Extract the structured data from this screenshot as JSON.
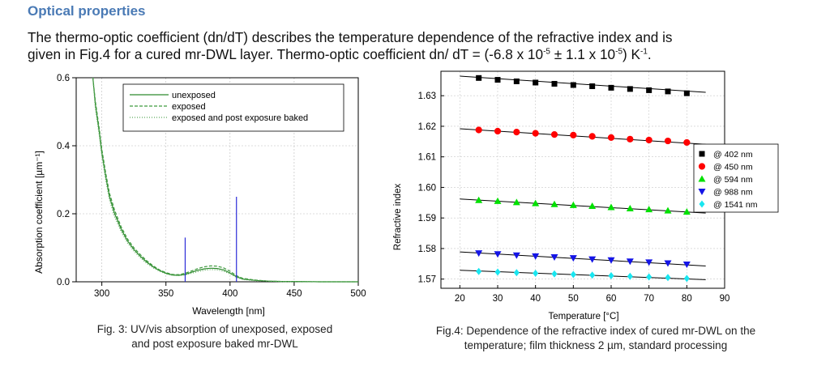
{
  "heading": "Optical properties",
  "paragraph": {
    "line1": "The thermo-optic coefficient (dn/dT) describes the temperature dependence of the refractive index and is",
    "line2_a": "given in Fig.4 for a cured mr-DWL layer. Thermo-optic coefficient dn/ dT = (-6.8 x 10",
    "exp1": "-5",
    "line2_b": " ± 1.1 x 10",
    "exp2": "-5",
    "line2_c": ") K",
    "exp3": "-1",
    "line2_d": "."
  },
  "fig3": {
    "caption_line1": "Fig. 3: UV/vis absorption of unexposed, exposed",
    "caption_line2": "and post exposure baked mr-DWL"
  },
  "fig4": {
    "caption_line1": "Fig.4: Dependence of the refractive index of cured mr-DWL on the",
    "caption_line2": "temperature; film thickness 2 µm, standard processing"
  },
  "chart_data": [
    {
      "type": "line",
      "xlabel": "Wavelength [nm]",
      "ylabel": "Absorption coefficient [µm⁻¹]",
      "xlim": [
        280,
        500
      ],
      "ylim": [
        0,
        0.6
      ],
      "xticks": [
        300,
        350,
        400,
        450,
        500
      ],
      "yticks": [
        0.0,
        0.2,
        0.4,
        0.6
      ],
      "ytick_labels": [
        "0.0",
        "0.2",
        "0.4",
        "0.6"
      ],
      "grid": true,
      "legend_position": "top",
      "series": [
        {
          "name": "unexposed",
          "color": "#2d8a2d",
          "dash": "solid",
          "x": [
            293,
            295,
            298,
            300,
            303,
            306,
            310,
            315,
            320,
            325,
            330,
            335,
            340,
            345,
            350,
            355,
            360,
            365,
            370,
            375,
            380,
            385,
            390,
            395,
            400,
            405,
            410,
            420,
            430,
            440,
            450,
            470,
            500
          ],
          "y": [
            0.6,
            0.52,
            0.44,
            0.38,
            0.31,
            0.25,
            0.2,
            0.155,
            0.12,
            0.095,
            0.075,
            0.058,
            0.044,
            0.033,
            0.025,
            0.02,
            0.019,
            0.022,
            0.028,
            0.034,
            0.038,
            0.04,
            0.039,
            0.035,
            0.026,
            0.015,
            0.008,
            0.004,
            0.002,
            0.001,
            0.001,
            0.0,
            0.0
          ]
        },
        {
          "name": "exposed",
          "color": "#3f9a3f",
          "dash": "4 2",
          "x": [
            293,
            295,
            298,
            300,
            303,
            306,
            310,
            315,
            320,
            325,
            330,
            335,
            340,
            345,
            350,
            355,
            360,
            365,
            370,
            375,
            380,
            385,
            390,
            395,
            400,
            405,
            410,
            420,
            430,
            440,
            450,
            470,
            500
          ],
          "y": [
            0.6,
            0.53,
            0.45,
            0.39,
            0.32,
            0.26,
            0.21,
            0.162,
            0.126,
            0.1,
            0.08,
            0.062,
            0.047,
            0.035,
            0.027,
            0.022,
            0.021,
            0.025,
            0.032,
            0.039,
            0.044,
            0.047,
            0.046,
            0.041,
            0.031,
            0.018,
            0.01,
            0.005,
            0.002,
            0.001,
            0.001,
            0.0,
            0.0
          ]
        },
        {
          "name": "exposed and post exposure baked",
          "color": "#5aa85a",
          "dash": "1 2",
          "x": [
            293,
            295,
            298,
            300,
            303,
            306,
            310,
            315,
            320,
            325,
            330,
            335,
            340,
            345,
            350,
            355,
            360,
            365,
            370,
            375,
            380,
            385,
            390,
            395,
            400,
            405,
            410,
            420,
            430,
            440,
            450,
            470,
            500
          ],
          "y": [
            0.6,
            0.51,
            0.43,
            0.37,
            0.3,
            0.24,
            0.19,
            0.148,
            0.114,
            0.09,
            0.071,
            0.054,
            0.041,
            0.031,
            0.023,
            0.019,
            0.018,
            0.02,
            0.025,
            0.03,
            0.034,
            0.036,
            0.035,
            0.031,
            0.023,
            0.013,
            0.007,
            0.003,
            0.002,
            0.001,
            0.0,
            0.0,
            0.0
          ]
        }
      ],
      "annotations": [
        {
          "type": "vline",
          "x": 365,
          "y_top": 0.13,
          "color": "#2b2bd8"
        },
        {
          "type": "vline",
          "x": 405,
          "y_top": 0.25,
          "color": "#2b2bd8"
        }
      ]
    },
    {
      "type": "scatter",
      "xlabel": "Temperature [°C]",
      "ylabel": "Refractive index",
      "xlim": [
        15,
        90
      ],
      "ylim": [
        1.567,
        1.638
      ],
      "xticks": [
        20,
        30,
        40,
        50,
        60,
        70,
        80,
        90
      ],
      "yticks": [
        1.57,
        1.58,
        1.59,
        1.6,
        1.61,
        1.62,
        1.63
      ],
      "ytick_labels": [
        "1.57",
        "1.58",
        "1.59",
        "1.60",
        "1.61",
        "1.62",
        "1.63"
      ],
      "grid": true,
      "legend_position": "right",
      "x": [
        25,
        30,
        35,
        40,
        45,
        50,
        55,
        60,
        65,
        70,
        75,
        80
      ],
      "series": [
        {
          "name": "@ 402 nm",
          "marker": "square",
          "color": "#000000",
          "values": [
            1.6358,
            1.6352,
            1.6347,
            1.6343,
            1.6339,
            1.6335,
            1.6331,
            1.6326,
            1.6322,
            1.6318,
            1.6314,
            1.6308
          ],
          "fit": [
            [
              20,
              1.6364
            ],
            [
              85,
              1.6311
            ]
          ]
        },
        {
          "name": "@ 450 nm",
          "marker": "circle",
          "color": "#ff0000",
          "values": [
            1.6188,
            1.6184,
            1.6181,
            1.6177,
            1.6173,
            1.6171,
            1.6167,
            1.6163,
            1.6158,
            1.6155,
            1.6152,
            1.6147
          ],
          "fit": [
            [
              20,
              1.6192
            ],
            [
              85,
              1.6141
            ]
          ]
        },
        {
          "name": "@ 594 nm",
          "marker": "triangle-up",
          "color": "#00e000",
          "values": [
            1.5958,
            1.5955,
            1.5951,
            1.5948,
            1.5945,
            1.5942,
            1.5939,
            1.5935,
            1.5931,
            1.5928,
            1.5924,
            1.592
          ],
          "fit": [
            [
              20,
              1.5962
            ],
            [
              85,
              1.5916
            ]
          ]
        },
        {
          "name": "@ 988 nm",
          "marker": "triangle-down",
          "color": "#1414e6",
          "values": [
            1.5785,
            1.5782,
            1.5778,
            1.5775,
            1.5772,
            1.5769,
            1.5765,
            1.5762,
            1.5758,
            1.5755,
            1.5752,
            1.5748
          ],
          "fit": [
            [
              20,
              1.5789
            ],
            [
              85,
              1.5743
            ]
          ]
        },
        {
          "name": "@ 1541 nm",
          "marker": "diamond",
          "color": "#19e6f0",
          "values": [
            1.5725,
            1.5723,
            1.5721,
            1.5719,
            1.5717,
            1.5715,
            1.5713,
            1.5711,
            1.5709,
            1.5707,
            1.5705,
            1.5702
          ],
          "fit": [
            [
              20,
              1.5729
            ],
            [
              85,
              1.5698
            ]
          ]
        }
      ]
    }
  ]
}
